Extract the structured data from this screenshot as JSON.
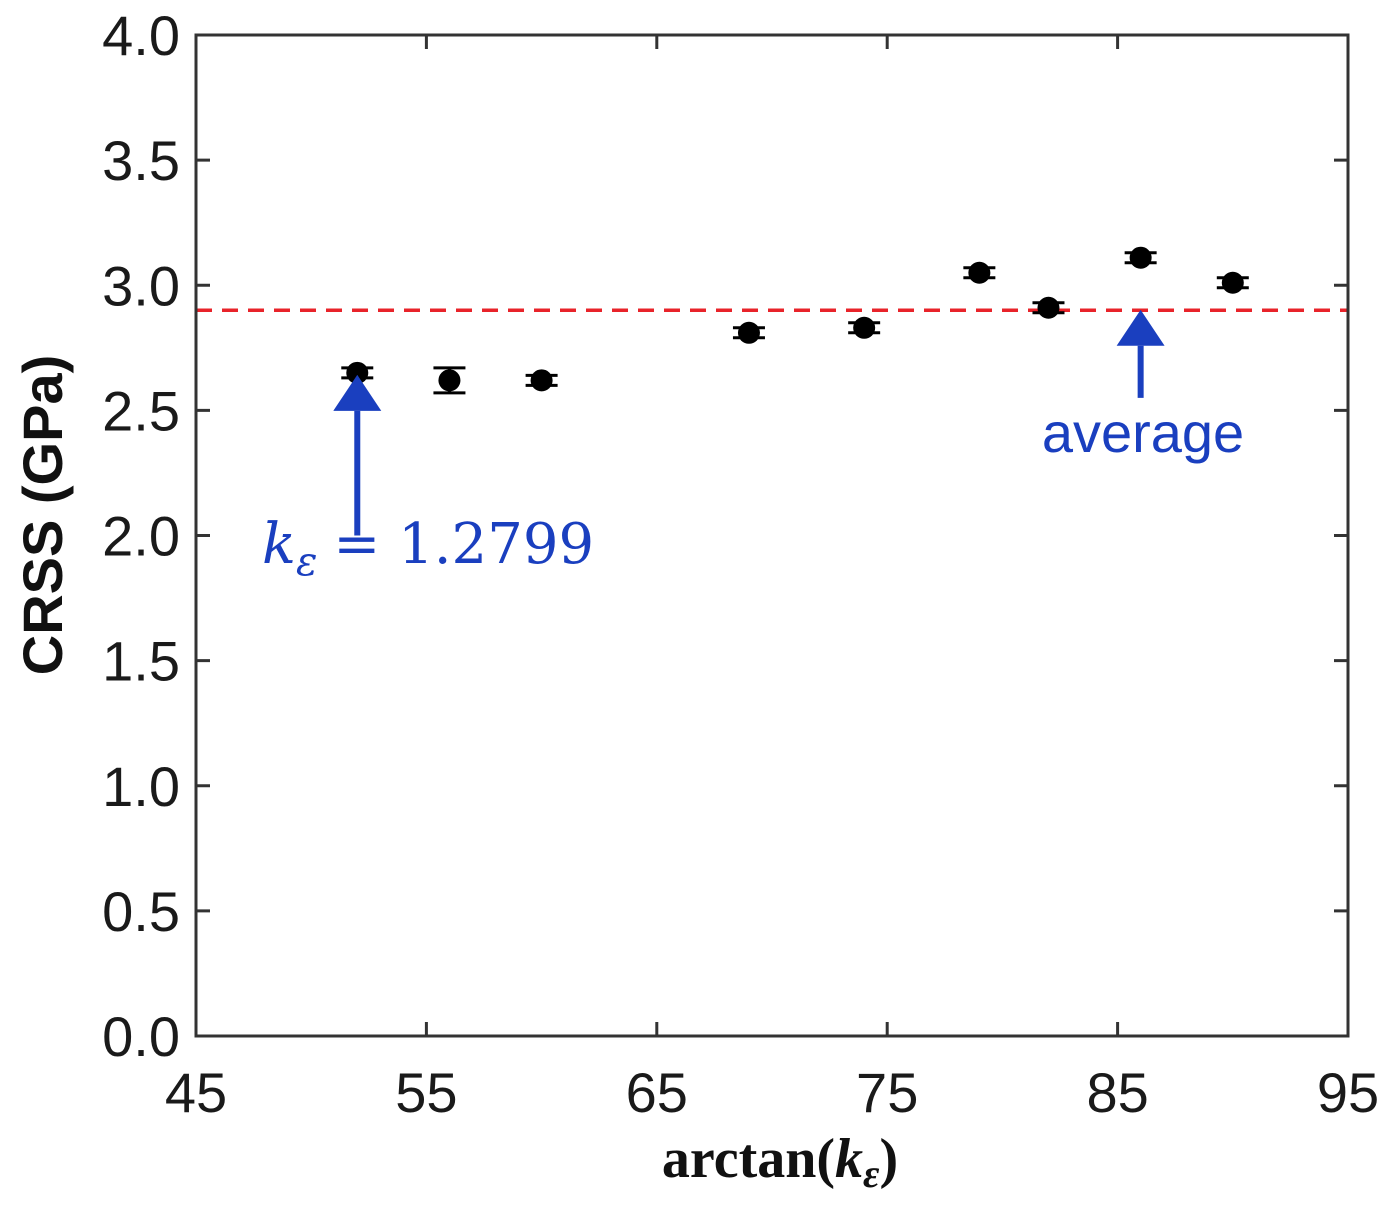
{
  "chart_data": {
    "type": "scatter",
    "title": "",
    "xlabel": {
      "prefix": "arctan(",
      "var": "k",
      "sub": "ε",
      "suffix": ")"
    },
    "ylabel": "CRSS (GPa)",
    "xlim": [
      45,
      95
    ],
    "ylim": [
      0.0,
      4.0
    ],
    "xticks": [
      45,
      55,
      65,
      75,
      85,
      95
    ],
    "xtick_labels": [
      "45",
      "55",
      "65",
      "75",
      "85",
      "95"
    ],
    "yticks": [
      0.0,
      0.5,
      1.0,
      1.5,
      2.0,
      2.5,
      3.0,
      3.5,
      4.0
    ],
    "ytick_labels": [
      "0.0",
      "0.5",
      "1.0",
      "1.5",
      "2.0",
      "2.5",
      "3.0",
      "3.5",
      "4.0"
    ],
    "grid": false,
    "series": [
      {
        "name": "CRSS",
        "color": "#000000",
        "x": [
          52,
          56,
          60,
          69,
          74,
          79,
          82,
          86,
          90
        ],
        "y": [
          2.65,
          2.62,
          2.62,
          2.81,
          2.83,
          3.05,
          2.91,
          3.11,
          3.01
        ],
        "yerr": [
          0.02,
          0.05,
          0.02,
          0.02,
          0.02,
          0.02,
          0.02,
          0.02,
          0.02
        ]
      }
    ],
    "reference_line": {
      "name": "average",
      "y": 2.9,
      "style": "dashed",
      "color": "#e8232a"
    },
    "annotations": [
      {
        "id": "ke-annotation",
        "text_var": "k",
        "text_sub": "ε",
        "text_eq": "= 1.2799",
        "arrow_x": 52,
        "arrow_from_y": 2.0,
        "arrow_to_y": 2.57,
        "color": "#1a3fbf"
      },
      {
        "id": "average-annotation",
        "text": "average",
        "arrow_x": 86,
        "arrow_from_y": 2.55,
        "arrow_to_y": 2.83,
        "color": "#1a3fbf"
      }
    ]
  }
}
